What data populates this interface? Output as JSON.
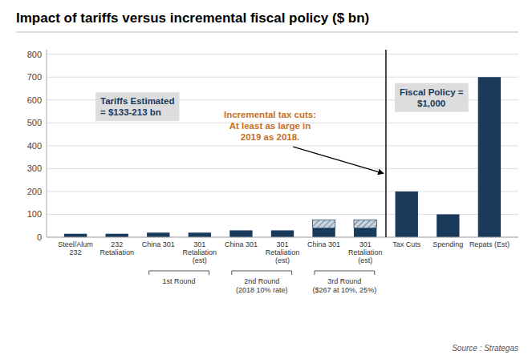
{
  "chart_data": {
    "type": "bar",
    "title": "Impact of tariffs versus incremental fiscal policy ($ bn)",
    "categories": [
      "Steel/Alum\n232",
      "232\nRetaliation",
      "China 301",
      "301\nRetaliation\n(est)",
      "China 301",
      "301\nRetaliation\n(est)",
      "China 301",
      "301\nRetaliation\n(est)",
      "Tax Cuts",
      "Spending",
      "Repats (Est)"
    ],
    "series": [
      {
        "color": "#1a3a5c",
        "values": [
          15,
          15,
          20,
          20,
          30,
          30,
          40,
          40,
          200,
          100,
          700
        ]
      },
      {
        "color": "#c8d4e0",
        "values": [
          0,
          0,
          0,
          0,
          0,
          0,
          35,
          35,
          0,
          0,
          0
        ]
      }
    ],
    "stacked": true,
    "ylim": [
      0,
      820
    ],
    "yticks": [
      0,
      100,
      200,
      300,
      400,
      500,
      600,
      700,
      800
    ],
    "grid": true,
    "groups": [
      {
        "label": "1st Round",
        "from": 2,
        "to": 3
      },
      {
        "label": "2nd Round\n(2018 10% rate)",
        "from": 4,
        "to": 5
      },
      {
        "label": "3rd Round\n($267 at 10%, 25%)",
        "from": 6,
        "to": 7
      }
    ],
    "divider_after": 7,
    "annotations": [
      {
        "text": "Tariffs Estimated\n= $133-213 bn",
        "color": "#1a3a5c"
      },
      {
        "text": "Incremental tax cuts:\nAt least as large in\n2019 as 2018.",
        "color": "#c87020"
      },
      {
        "text": "Fiscal Policy =\n$1,000",
        "color": "#1a3a5c"
      }
    ],
    "source": "Source : Strategas"
  }
}
